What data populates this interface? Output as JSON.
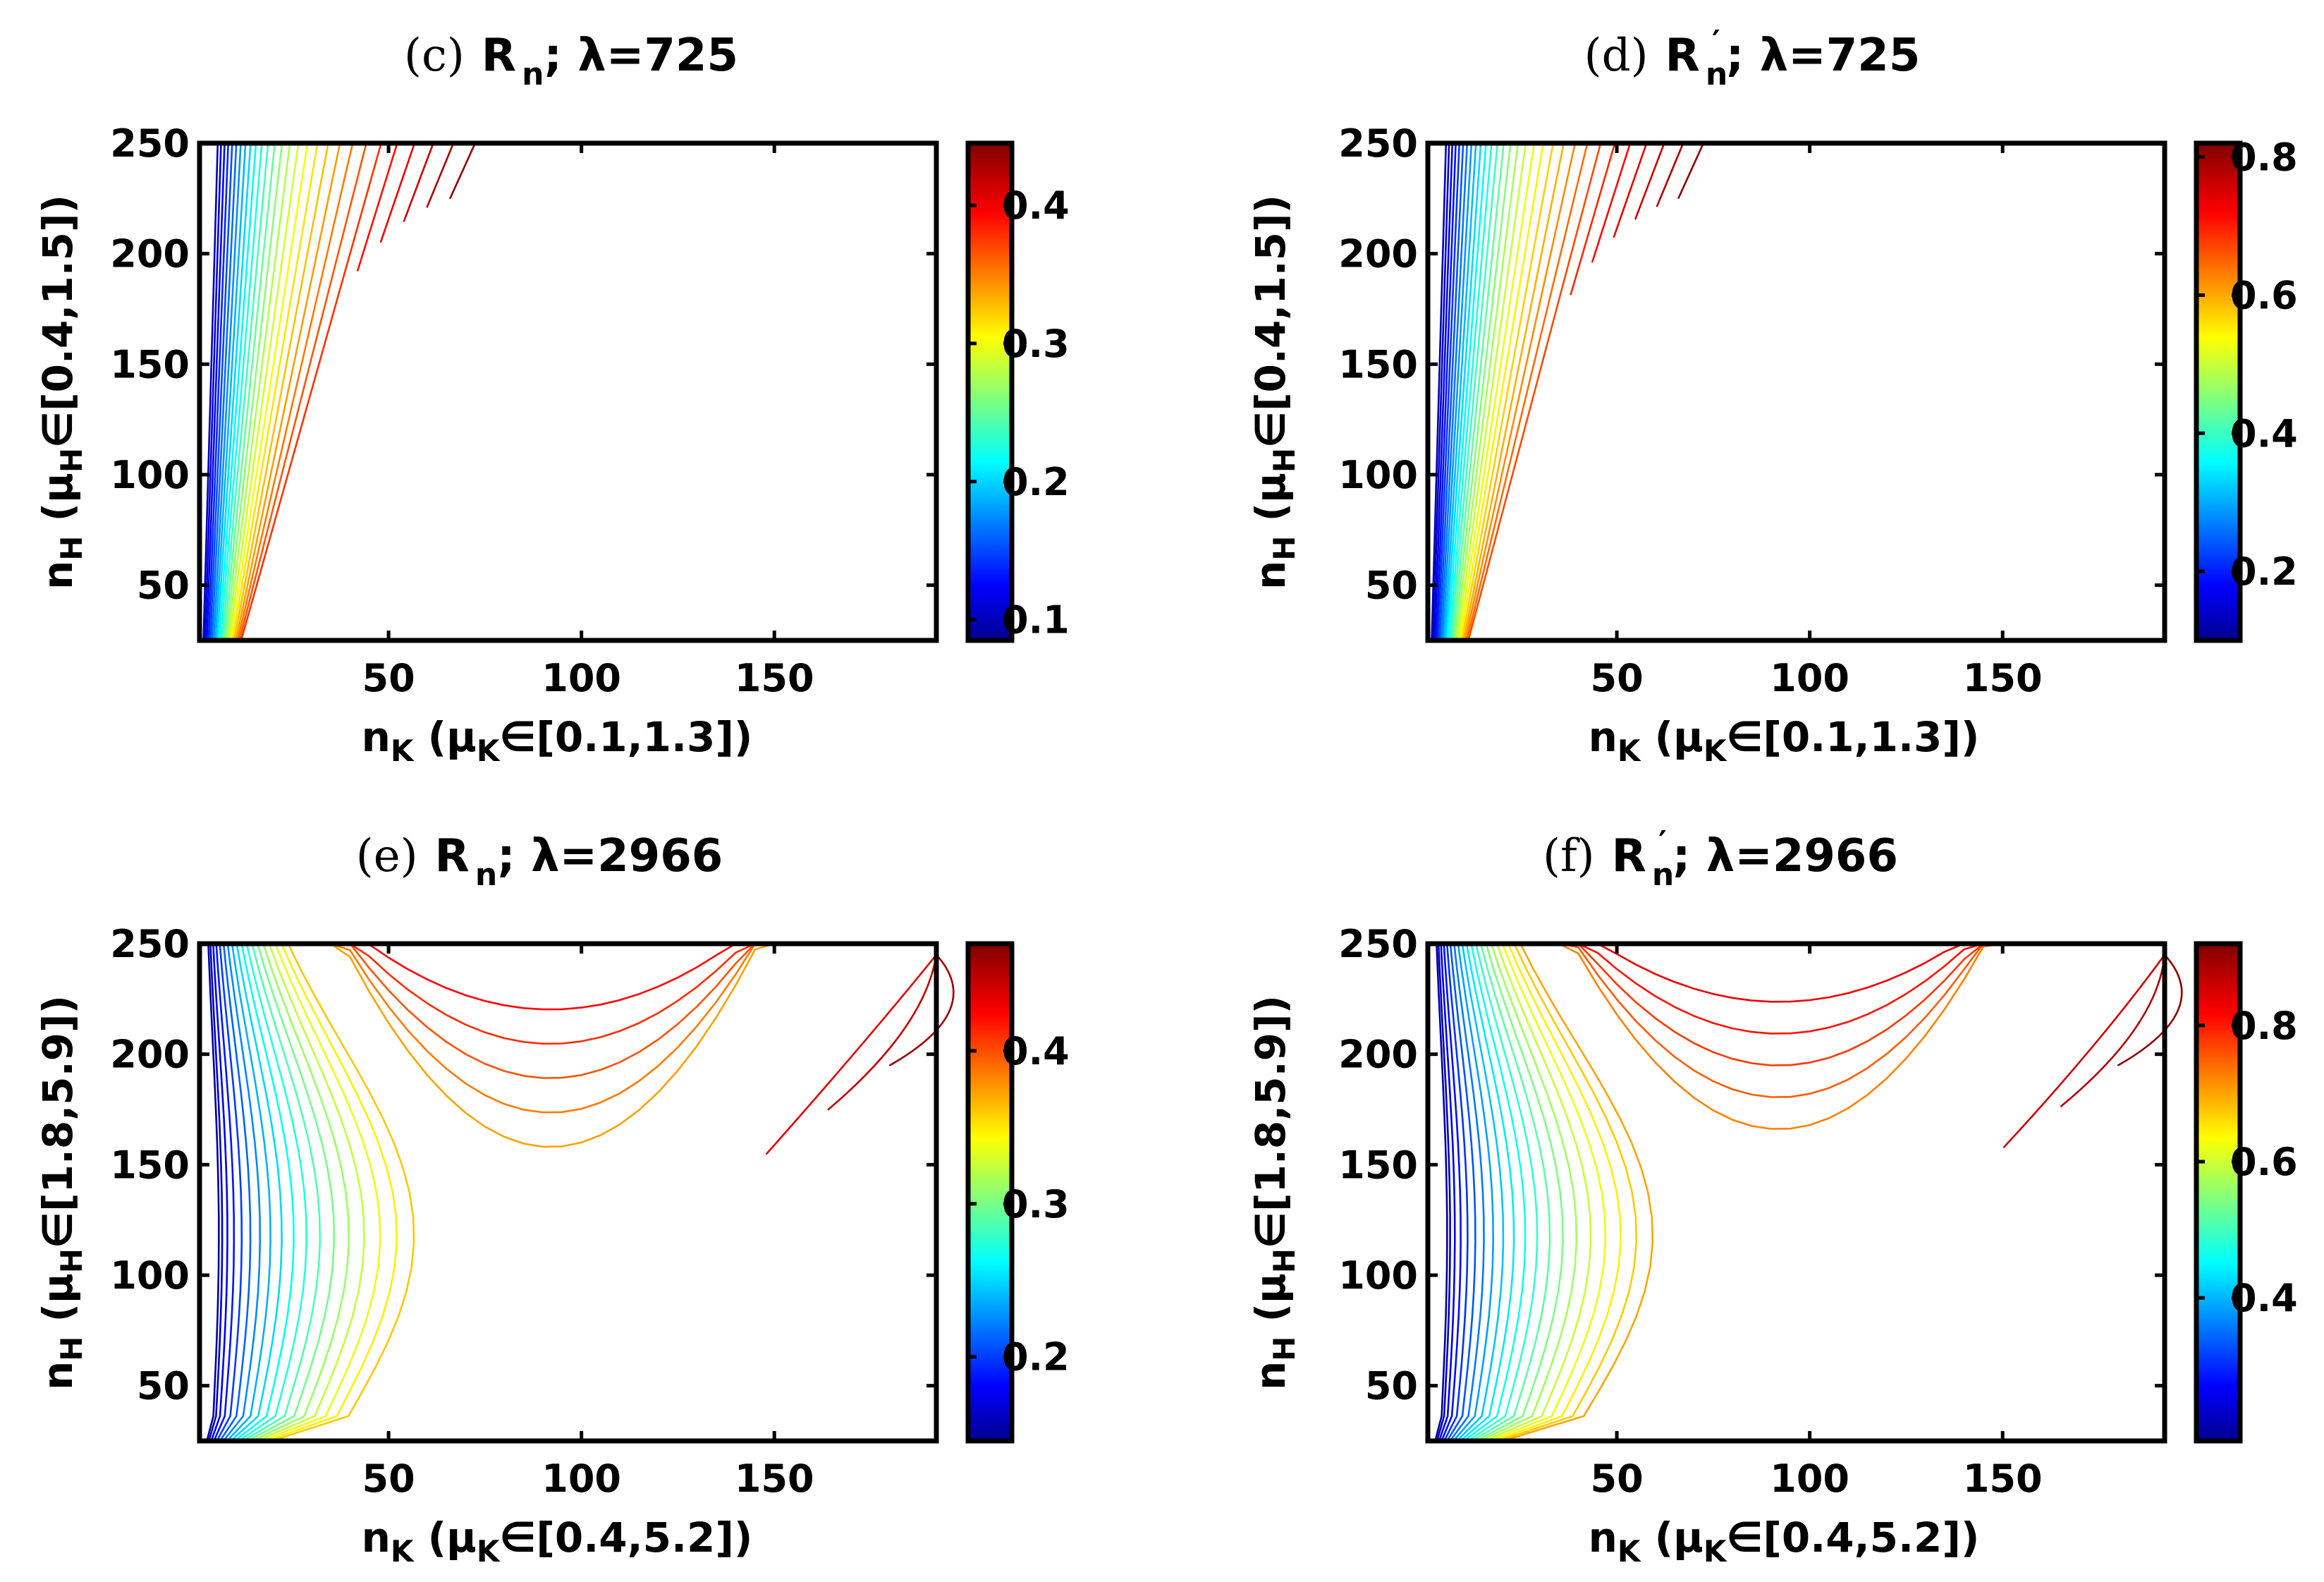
{
  "chart_data": [
    {
      "type": "contour",
      "panel": "(c)",
      "title": {
        "paren": "(c)",
        "symbol": "R",
        "subscript": "n",
        "prime": false,
        "rest": "; λ=725"
      },
      "xlabel": {
        "main": "n",
        "sub": "K",
        "mu": " (μ",
        "mu_sub": "K",
        "interval": "∈[0.1,1.3])"
      },
      "ylabel": {
        "main": "n",
        "sub": "H",
        "mu": " (μ",
        "mu_sub": "H",
        "interval": "∈[0.4,1.5])"
      },
      "xlim": [
        1,
        192
      ],
      "ylim": [
        25,
        250
      ],
      "xticks": [
        50,
        100,
        150
      ],
      "yticks": [
        50,
        100,
        150,
        200,
        250
      ],
      "colorbar": {
        "ticks": [
          "0.1",
          "0.2",
          "0.3",
          "0.4"
        ],
        "tick_values": [
          0.1,
          0.2,
          0.3,
          0.4
        ],
        "range": [
          0.085,
          0.445
        ]
      },
      "contour_family": "fan",
      "n_levels": 28,
      "level_range": [
        0.1,
        0.44
      ]
    },
    {
      "type": "contour",
      "panel": "(d)",
      "title": {
        "paren": "(d)",
        "symbol": "R",
        "subscript": "n",
        "prime": true,
        "rest": "; λ=725"
      },
      "xlabel": {
        "main": "n",
        "sub": "K",
        "mu": " (μ",
        "mu_sub": "K",
        "interval": "∈[0.1,1.3])"
      },
      "ylabel": {
        "main": "n",
        "sub": "H",
        "mu": " (μ",
        "mu_sub": "H",
        "interval": "∈[0.4,1.5])"
      },
      "xlim": [
        1,
        192
      ],
      "ylim": [
        25,
        250
      ],
      "xticks": [
        50,
        100,
        150
      ],
      "yticks": [
        50,
        100,
        150,
        200,
        250
      ],
      "colorbar": {
        "ticks": [
          "0.2",
          "0.4",
          "0.6",
          "0.8"
        ],
        "tick_values": [
          0.2,
          0.4,
          0.6,
          0.8
        ],
        "range": [
          0.1,
          0.82
        ]
      },
      "contour_family": "fan",
      "n_levels": 30,
      "level_range": [
        0.12,
        0.81
      ]
    },
    {
      "type": "contour",
      "panel": "(e)",
      "title": {
        "paren": "(e)",
        "symbol": "R",
        "subscript": "n",
        "prime": false,
        "rest": "; λ=2966"
      },
      "xlabel": {
        "main": "n",
        "sub": "K",
        "mu": " (μ",
        "mu_sub": "K",
        "interval": "∈[0.4,5.2])"
      },
      "ylabel": {
        "main": "n",
        "sub": "H",
        "mu": " (μ",
        "mu_sub": "H",
        "interval": "∈[1.8,5.9])"
      },
      "xlim": [
        1,
        192
      ],
      "ylim": [
        25,
        250
      ],
      "xticks": [
        50,
        100,
        150
      ],
      "yticks": [
        50,
        100,
        150,
        200,
        250
      ],
      "colorbar": {
        "ticks": [
          "0.2",
          "0.3",
          "0.4"
        ],
        "tick_values": [
          0.2,
          0.3,
          0.4
        ],
        "range": [
          0.145,
          0.47
        ]
      },
      "contour_family": "saddle",
      "n_levels": 26,
      "level_range": [
        0.15,
        0.46
      ]
    },
    {
      "type": "contour",
      "panel": "(f)",
      "title": {
        "paren": "(f)",
        "symbol": "R",
        "subscript": "n",
        "prime": true,
        "rest": "; λ=2966"
      },
      "xlabel": {
        "main": "n",
        "sub": "K",
        "mu": " (μ",
        "mu_sub": "K",
        "interval": "∈[0.4,5.2])"
      },
      "ylabel": {
        "main": "n",
        "sub": "H",
        "mu": " (μ",
        "mu_sub": "H",
        "interval": "∈[1.8,5.9])"
      },
      "xlim": [
        1,
        192
      ],
      "ylim": [
        25,
        250
      ],
      "xticks": [
        50,
        100,
        150
      ],
      "yticks": [
        50,
        100,
        150,
        200,
        250
      ],
      "colorbar": {
        "ticks": [
          "0.4",
          "0.6",
          "0.8"
        ],
        "tick_values": [
          0.4,
          0.6,
          0.8
        ],
        "range": [
          0.19,
          0.92
        ]
      },
      "contour_family": "saddle",
      "n_levels": 28,
      "level_range": [
        0.2,
        0.91
      ]
    }
  ]
}
